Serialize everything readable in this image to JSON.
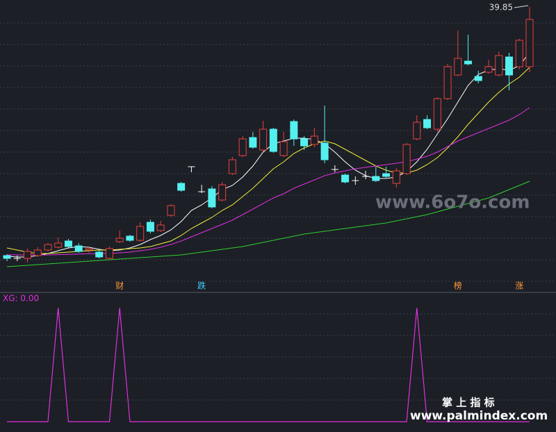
{
  "chart_data": [
    {
      "type": "candlestick",
      "categories": [
        null,
        null,
        null,
        null,
        null,
        null,
        null,
        null,
        null,
        null,
        null,
        "财",
        null,
        null,
        null,
        null,
        null,
        null,
        null,
        "跌",
        null,
        null,
        null,
        null,
        null,
        null,
        null,
        null,
        null,
        null,
        null,
        null,
        null,
        null,
        null,
        null,
        null,
        null,
        null,
        null,
        null,
        null,
        null,
        null,
        "榜",
        null,
        null,
        null,
        null,
        null,
        "涨",
        null
      ],
      "open": [
        21.95,
        21.75,
        21.75,
        21.95,
        22.35,
        22.55,
        23.0,
        22.65,
        22.35,
        22.2,
        21.75,
        22.95,
        23.35,
        23.05,
        24.35,
        23.75,
        24.85,
        27.15,
        28.35,
        26.55,
        26.75,
        25.95,
        27.85,
        29.15,
        30.45,
        29.55,
        31.05,
        29.15,
        31.6,
        30.35,
        29.95,
        30.05,
        28.15,
        27.75,
        27.35,
        27.65,
        27.65,
        27.85,
        27.15,
        27.85,
        30.35,
        31.75,
        31.05,
        33.25,
        34.95,
        35.95,
        34.85,
        35.15,
        34.95,
        36.25,
        35.55,
        35.55
      ],
      "close": [
        21.75,
        21.75,
        22.25,
        22.35,
        22.75,
        22.85,
        22.6,
        22.25,
        22.45,
        21.85,
        22.45,
        23.2,
        23.05,
        24.05,
        23.7,
        24.15,
        25.55,
        26.65,
        28.35,
        26.55,
        25.45,
        27.05,
        28.85,
        30.35,
        29.75,
        31.05,
        29.45,
        30.15,
        30.35,
        29.85,
        30.55,
        28.85,
        28.15,
        27.25,
        27.35,
        27.65,
        27.35,
        27.65,
        28.05,
        29.95,
        31.55,
        31.15,
        33.25,
        35.55,
        36.15,
        35.75,
        34.55,
        35.55,
        36.35,
        34.95,
        37.45,
        38.95
      ],
      "high": [
        22.05,
        21.95,
        22.45,
        22.55,
        22.85,
        23.25,
        23.15,
        22.85,
        22.55,
        22.35,
        22.6,
        23.75,
        23.45,
        24.35,
        24.55,
        24.45,
        25.65,
        27.25,
        28.35,
        27.05,
        26.95,
        27.25,
        29.05,
        30.55,
        30.85,
        31.65,
        31.15,
        30.85,
        31.75,
        30.55,
        31.15,
        32.75,
        28.45,
        27.85,
        27.65,
        28.05,
        28.35,
        28.35,
        28.25,
        30.05,
        32.05,
        32.05,
        33.35,
        35.75,
        38.15,
        37.85,
        35.25,
        36.05,
        36.65,
        36.55,
        37.55,
        39.85
      ],
      "low": [
        21.55,
        21.55,
        21.45,
        21.85,
        22.25,
        22.45,
        22.45,
        22.15,
        22.15,
        21.75,
        21.65,
        22.85,
        22.95,
        22.95,
        23.55,
        23.65,
        24.75,
        26.55,
        27.95,
        26.45,
        25.35,
        25.85,
        27.75,
        29.05,
        29.65,
        29.45,
        29.35,
        29.05,
        29.85,
        29.55,
        29.75,
        28.6,
        27.95,
        27.15,
        27.05,
        27.45,
        27.25,
        27.55,
        26.85,
        27.75,
        30.25,
        31.05,
        30.85,
        33.15,
        34.85,
        35.65,
        34.35,
        35.05,
        34.85,
        33.85,
        35.35,
        35.15
      ],
      "up_color": "#e8413c",
      "down_color": "#54f0f0",
      "series": [
        {
          "color": "#ffffff",
          "values": [
            21.9,
            21.85,
            21.85,
            21.95,
            22.1,
            22.3,
            22.5,
            22.6,
            22.55,
            22.4,
            22.3,
            22.35,
            22.5,
            22.75,
            23.1,
            23.4,
            23.8,
            24.4,
            25.2,
            25.6,
            26.1,
            26.7,
            27.0,
            27.6,
            28.4,
            29.4,
            30.0,
            30.2,
            30.4,
            30.4,
            30.3,
            30.0,
            29.4,
            28.7,
            28.1,
            27.7,
            27.5,
            27.5,
            27.6,
            28.0,
            28.7,
            29.6,
            30.7,
            31.8,
            33.0,
            34.2,
            35.0,
            35.3,
            35.4,
            35.3,
            35.6,
            36.6
          ]
        },
        {
          "color": "#f2f03c",
          "values": [
            22.5,
            22.35,
            22.2,
            22.1,
            22.1,
            22.15,
            22.2,
            22.25,
            22.3,
            22.35,
            22.35,
            22.4,
            22.45,
            22.5,
            22.6,
            22.8,
            23.0,
            23.4,
            23.9,
            24.3,
            24.7,
            25.2,
            25.6,
            26.2,
            26.8,
            27.5,
            28.2,
            28.7,
            29.3,
            29.7,
            30.0,
            30.2,
            30.0,
            29.6,
            29.2,
            28.8,
            28.4,
            28.1,
            27.9,
            27.9,
            28.1,
            28.5,
            29.0,
            29.7,
            30.5,
            31.4,
            32.2,
            33.0,
            33.7,
            34.3,
            34.8,
            35.5
          ]
        },
        {
          "color": "#e030e0",
          "values": [
            22.0,
            22.0,
            22.0,
            22.0,
            22.0,
            22.02,
            22.04,
            22.06,
            22.08,
            22.1,
            22.1,
            22.15,
            22.2,
            22.3,
            22.4,
            22.55,
            22.75,
            23.0,
            23.3,
            23.6,
            23.9,
            24.2,
            24.5,
            24.9,
            25.3,
            25.7,
            26.1,
            26.4,
            26.8,
            27.1,
            27.4,
            27.7,
            27.9,
            28.05,
            28.2,
            28.3,
            28.4,
            28.5,
            28.6,
            28.7,
            28.9,
            29.1,
            29.4,
            29.8,
            30.2,
            30.5,
            30.8,
            31.1,
            31.4,
            31.7,
            32.1,
            32.6
          ]
        },
        {
          "color": "#30d030",
          "values": [
            21.15,
            21.2,
            21.25,
            21.3,
            21.35,
            21.4,
            21.45,
            21.5,
            21.55,
            21.6,
            21.65,
            21.7,
            21.75,
            21.8,
            21.85,
            21.9,
            21.95,
            22.0,
            22.1,
            22.2,
            22.3,
            22.4,
            22.5,
            22.6,
            22.75,
            22.9,
            23.05,
            23.2,
            23.35,
            23.5,
            23.6,
            23.7,
            23.8,
            23.9,
            24.0,
            24.1,
            24.2,
            24.3,
            24.45,
            24.6,
            24.75,
            24.9,
            25.1,
            25.3,
            25.5,
            25.7,
            25.9,
            26.1,
            26.4,
            26.7,
            27.0,
            27.3
          ]
        }
      ],
      "ylim": [
        19.35,
        40.35
      ],
      "annotations": [
        "39.85"
      ]
    },
    {
      "type": "line",
      "title": "XG: 0.00",
      "color": "#e030e0",
      "values": [
        0,
        0,
        0,
        0,
        0,
        1,
        0,
        0,
        0,
        0,
        0,
        1,
        0,
        0,
        0,
        0,
        0,
        0,
        0,
        0,
        0,
        0,
        0,
        0,
        0,
        0,
        0,
        0,
        0,
        0,
        0,
        0,
        0,
        0,
        0,
        0,
        0,
        0,
        0,
        0,
        1,
        0,
        0,
        0,
        0,
        0,
        0,
        0,
        0,
        0,
        0,
        0
      ],
      "ylim": [
        -0.09,
        1.13
      ]
    }
  ],
  "watermarks": [
    "www.6o7o.com",
    "掌 上 指 标",
    "www.palmindex.com"
  ]
}
